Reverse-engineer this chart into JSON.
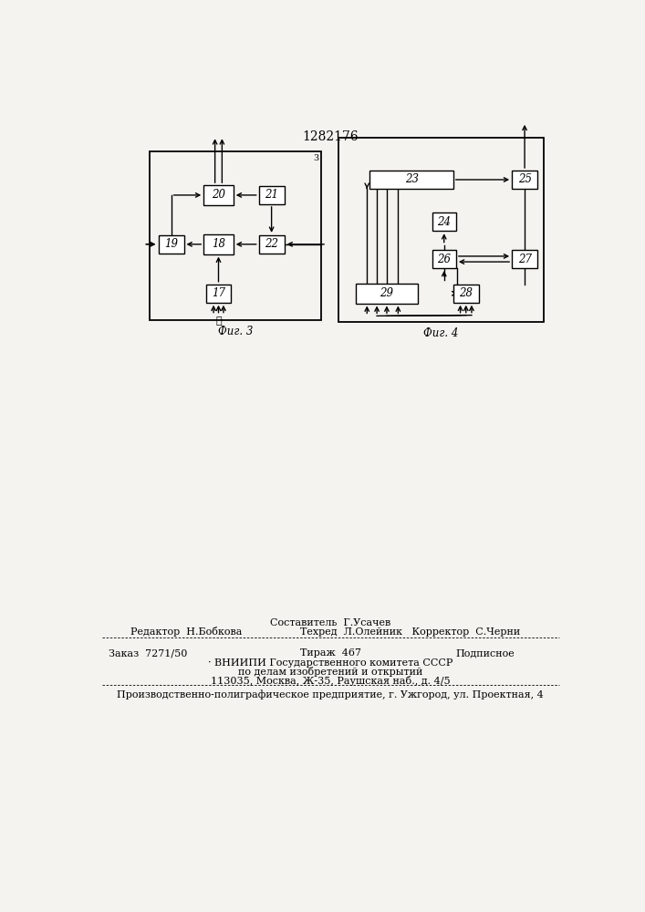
{
  "title": "1282176",
  "bg_color": "#f5f3ef",
  "fig3_label": "Фиг. 3",
  "fig4_label": "Фиг. 4",
  "footer_sestavitel": "Составитель  Г.Усачев",
  "footer_redaktor": "Редактор  Н.Бобкова",
  "footer_tehred": "Техред  Л.Олейник   Корректор  С.Черни",
  "footer_zak": "Заказ  7271/50",
  "footer_tirazh": "Тираж  467",
  "footer_podp": "Подписное",
  "footer_vnipi": "· ВНИИПИ Государственного комитета СССР",
  "footer_dela": "по делам изобретений и открытий",
  "footer_addr": "113035, Москва, Ж-35, Раушская наб., д. 4/5",
  "footer_last": "Производственно-полиграфическое предприятие, г. Ужгород, ул. Проектная, 4"
}
